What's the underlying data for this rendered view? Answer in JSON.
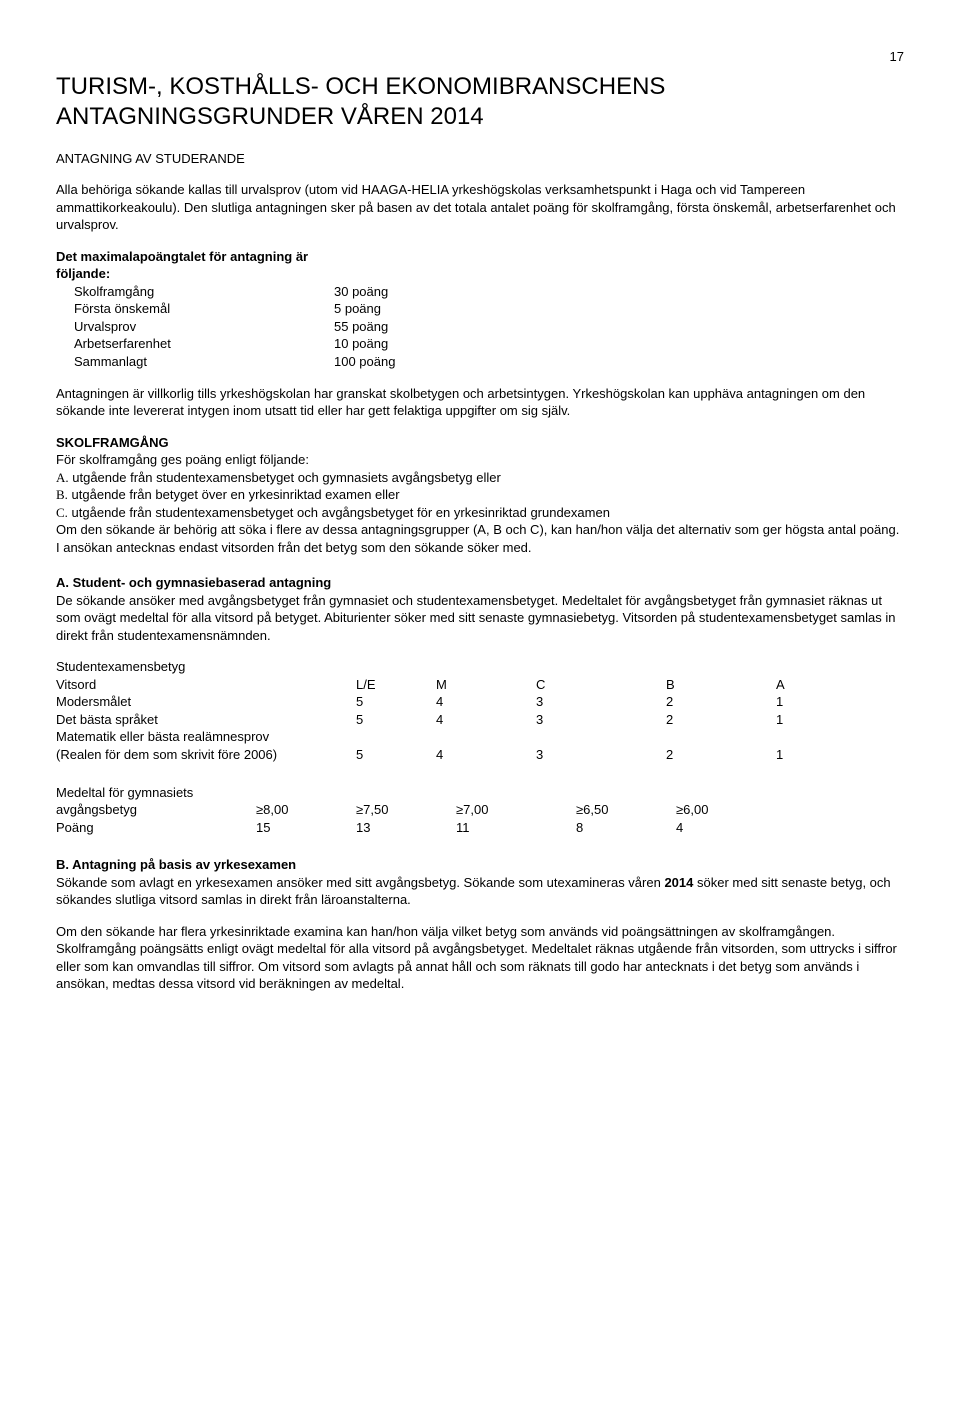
{
  "pageNumber": "17",
  "title": "TURISM-, KOSTHÅLLS- OCH EKONOMIBRANSCHENS ANTAGNINGSGRUNDER VÅREN 2014",
  "subhead": "ANTAGNING AV STUDERANDE",
  "intro": "Alla behöriga sökande kallas till urvalsprov (utom vid HAAGA-HELIA yrkeshögskolas verksamhetspunkt i Haga och vid Tampereen ammattikorkeakoulu). Den slutliga antagningen sker på basen av det totala antalet poäng för skolframgång, första önskemål, arbetserfarenhet och urvalsprov.",
  "maxPoints": {
    "heading": "Det maximalapoängtalet för antagning är följande:",
    "rows": [
      {
        "label": "Skolframgång",
        "value": "30 poäng"
      },
      {
        "label": "Första önskemål",
        "value": "5 poäng"
      },
      {
        "label": "Urvalsprov",
        "value": "55 poäng"
      },
      {
        "label": "Arbetserfarenhet",
        "value": "10 poäng"
      },
      {
        "label": "Sammanlagt",
        "value": "100 poäng"
      }
    ]
  },
  "paraConditional": "Antagningen är villkorlig tills yrkeshögskolan har granskat skolbetygen och arbetsintygen. Yrkeshögskolan kan upphäva antagningen om den sökande inte levererat intygen inom utsatt tid eller har gett felaktiga uppgifter om sig själv.",
  "skolframgang": {
    "heading": "SKOLFRAMGÅNG",
    "lead": "För skolframgång ges poäng enligt följande:",
    "a_prefix": "A.",
    "a_text": " utgående från studentexamensbetyget och gymnasiets avgångsbetyg eller",
    "b_prefix": "B.",
    "b_text": " utgående från betyget över en yrkesinriktad examen eller",
    "c_prefix": "C.",
    "c_text": " utgående från studentexamensbetyget och avgångsbetyget för en yrkesinriktad grundexamen",
    "tail": "Om den sökande är behörig att söka i flere av dessa antagningsgrupper (A, B och C), kan han/hon välja det alternativ som ger högsta antal poäng. I ansökan antecknas endast vitsorden från det betyg som den sökande söker med."
  },
  "sectionA": {
    "heading": "A. Student- och gymnasiebaserad antagning",
    "body": "De sökande ansöker med avgångsbetyget från gymnasiet och studentexamensbetyget. Medeltalet för avgångsbetyget från gymnasiet räknas ut som ovägt medeltal för alla vitsord på betyget. Abiturienter söker med sitt senaste gymnasiebetyg. Vitsorden på studentexamensbetyget samlas in direkt från studentexamensnämnden."
  },
  "gradesTable": {
    "headerLabel": "Studentexamensbetyg",
    "rowVitsord": {
      "c0": "Vitsord",
      "c1": "L/E",
      "c2": "M",
      "c3": "C",
      "c4": "B",
      "c5": "A"
    },
    "row1": {
      "c0": "Modersmålet",
      "c1": "5",
      "c2": "4",
      "c3": "3",
      "c4": "2",
      "c5": "1"
    },
    "row2": {
      "c0": "Det bästa språket",
      "c1": "5",
      "c2": "4",
      "c3": "3",
      "c4": "2",
      "c5": "1"
    },
    "row3a": "Matematik eller bästa realämnesprov",
    "row3b": {
      "c0": "(Realen för dem som skrivit före 2006)",
      "c1": "5",
      "c2": "4",
      "c3": "3",
      "c4": "2",
      "c5": "1"
    }
  },
  "avgTable": {
    "line1": "Medeltal för gymnasiets",
    "row1": {
      "a0": "avgångsbetyg",
      "a1": "≥8,00",
      "a2": "≥7,50",
      "a3": "≥7,00",
      "a4": "≥6,50",
      "a5": "≥6,00"
    },
    "row2": {
      "a0": "Poäng",
      "a1": "15",
      "a2": "13",
      "a3": "11",
      "a4": "8",
      "a5": "4"
    }
  },
  "sectionB": {
    "heading": "B. Antagning på basis av yrkesexamen",
    "body1a": "Sökande som avlagt en yrkesexamen ansöker med sitt avgångsbetyg. Sökande som utexamineras våren ",
    "body1bold": "2014",
    "body1b": " söker med sitt senaste betyg, och sökandes slutliga vitsord samlas in direkt från läroanstalterna.",
    "body2": "Om den sökande har flera yrkesinriktade examina kan han/hon välja vilket betyg som används vid poängsättningen av skolframgången. Skolframgång poängsätts enligt ovägt medeltal för alla vitsord på avgångsbetyget. Medeltalet räknas utgående från vitsorden, som uttrycks i siffror eller som kan omvandlas till siffror. Om vitsord som avlagts på annat håll och som räknats till godo har antecknats i det betyg som används i ansökan, medtas dessa vitsord vid beräkningen av medeltal."
  }
}
